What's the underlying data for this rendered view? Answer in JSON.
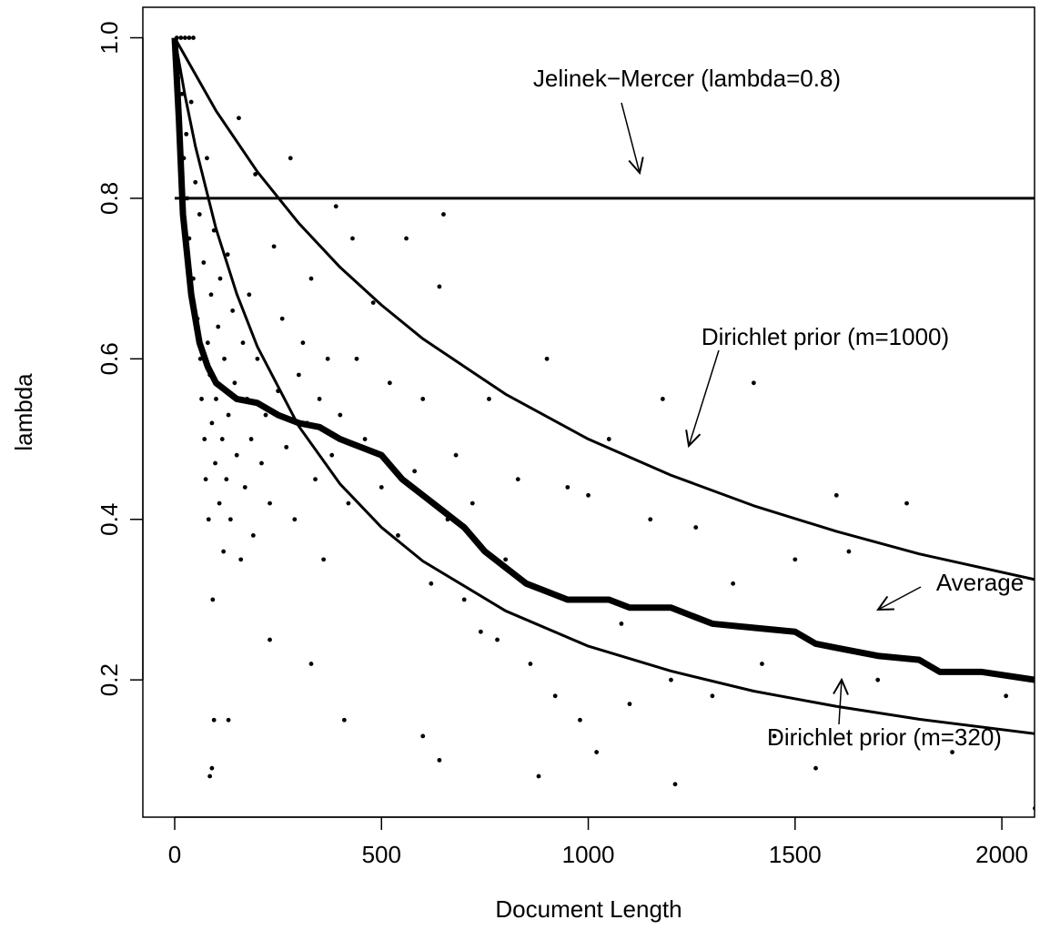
{
  "chart_data": {
    "type": "scatter",
    "xlabel": "Document Length",
    "ylabel": "lambda",
    "xlim": [
      -77,
      2079
    ],
    "ylim": [
      0.029,
      1.038
    ],
    "xticks": [
      0,
      500,
      1000,
      1500,
      2000
    ],
    "yticks": [
      0.2,
      0.4,
      0.6,
      0.8,
      {
        "value": 1,
        "label": "1.0"
      }
    ],
    "series": [
      {
        "name": "Jelinek−Mercer (lambda=0.8)",
        "mode": "line",
        "color": "#000000",
        "width": 3,
        "x": [
          0,
          2080
        ],
        "values": [
          0.8,
          0.8
        ]
      },
      {
        "name": "Dirichlet prior (m=1000)",
        "mode": "line",
        "color": "#000000",
        "width": 3,
        "x": [
          0,
          100,
          200,
          300,
          400,
          500,
          600,
          800,
          1000,
          1200,
          1400,
          1600,
          1800,
          2080
        ],
        "values": [
          1,
          0.909,
          0.833,
          0.769,
          0.714,
          0.667,
          0.625,
          0.556,
          0.5,
          0.455,
          0.417,
          0.385,
          0.357,
          0.325
        ]
      },
      {
        "name": "Dirichlet prior (m=320)",
        "mode": "line",
        "color": "#000000",
        "width": 3,
        "x": [
          0,
          25,
          50,
          100,
          150,
          200,
          300,
          400,
          500,
          600,
          800,
          1000,
          1200,
          1400,
          1600,
          1800,
          2080
        ],
        "values": [
          1,
          0.928,
          0.865,
          0.762,
          0.681,
          0.615,
          0.516,
          0.444,
          0.39,
          0.348,
          0.286,
          0.242,
          0.211,
          0.186,
          0.167,
          0.151,
          0.133
        ]
      },
      {
        "name": "Average",
        "mode": "line",
        "color": "#000000",
        "width": 7,
        "x": [
          0,
          10,
          20,
          40,
          60,
          80,
          100,
          150,
          200,
          250,
          300,
          350,
          400,
          450,
          500,
          550,
          600,
          650,
          700,
          750,
          800,
          850,
          900,
          950,
          1000,
          1050,
          1100,
          1150,
          1200,
          1250,
          1300,
          1400,
          1500,
          1550,
          1600,
          1700,
          1800,
          1850,
          1950,
          2080
        ],
        "values": [
          1,
          0.9,
          0.78,
          0.68,
          0.62,
          0.59,
          0.57,
          0.55,
          0.545,
          0.53,
          0.52,
          0.515,
          0.5,
          0.49,
          0.48,
          0.45,
          0.43,
          0.41,
          0.39,
          0.36,
          0.34,
          0.32,
          0.31,
          0.3,
          0.3,
          0.3,
          0.29,
          0.29,
          0.29,
          0.28,
          0.27,
          0.265,
          0.26,
          0.245,
          0.24,
          0.23,
          0.225,
          0.21,
          0.21,
          0.2
        ]
      },
      {
        "mode": "points",
        "color": "#000000",
        "x": [
          5,
          15,
          25,
          35,
          45,
          8,
          12,
          18,
          22,
          28,
          30,
          35,
          40,
          45,
          50,
          55,
          60,
          62,
          65,
          70,
          72,
          75,
          78,
          80,
          82,
          85,
          88,
          90,
          92,
          95,
          98,
          100,
          105,
          108,
          110,
          115,
          118,
          120,
          125,
          128,
          130,
          135,
          140,
          145,
          150,
          155,
          160,
          165,
          170,
          175,
          180,
          185,
          190,
          195,
          200,
          210,
          220,
          230,
          240,
          250,
          260,
          270,
          280,
          290,
          300,
          310,
          320,
          330,
          340,
          350,
          360,
          370,
          380,
          390,
          400,
          420,
          430,
          440,
          460,
          480,
          500,
          520,
          540,
          560,
          580,
          600,
          620,
          640,
          650,
          660,
          680,
          700,
          720,
          740,
          760,
          780,
          800,
          830,
          860,
          880,
          900,
          920,
          950,
          980,
          1000,
          1020,
          1050,
          1080,
          1100,
          1150,
          1180,
          1200,
          1210,
          1260,
          1300,
          1350,
          1400,
          1420,
          1450,
          1500,
          1550,
          1600,
          1630,
          1700,
          1770,
          1880,
          2010,
          2080,
          95,
          90,
          85,
          130,
          230,
          600,
          640,
          330,
          410
        ],
        "values": [
          1,
          1,
          1,
          1,
          1,
          0.95,
          0.9,
          0.93,
          0.85,
          0.88,
          0.8,
          0.75,
          0.92,
          0.7,
          0.82,
          0.65,
          0.78,
          0.6,
          0.55,
          0.72,
          0.5,
          0.45,
          0.85,
          0.62,
          0.4,
          0.58,
          0.68,
          0.52,
          0.3,
          0.76,
          0.47,
          0.55,
          0.64,
          0.42,
          0.7,
          0.5,
          0.36,
          0.6,
          0.45,
          0.73,
          0.53,
          0.4,
          0.66,
          0.57,
          0.48,
          0.9,
          0.35,
          0.62,
          0.44,
          0.55,
          0.68,
          0.5,
          0.38,
          0.83,
          0.6,
          0.47,
          0.53,
          0.42,
          0.74,
          0.56,
          0.65,
          0.49,
          0.85,
          0.4,
          0.58,
          0.62,
          0.52,
          0.7,
          0.45,
          0.55,
          0.35,
          0.6,
          0.48,
          0.79,
          0.53,
          0.42,
          0.75,
          0.6,
          0.5,
          0.67,
          0.44,
          0.57,
          0.38,
          0.75,
          0.46,
          0.55,
          0.32,
          0.69,
          0.78,
          0.4,
          0.48,
          0.3,
          0.42,
          0.26,
          0.55,
          0.25,
          0.35,
          0.45,
          0.22,
          0.08,
          0.6,
          0.18,
          0.44,
          0.15,
          0.43,
          0.11,
          0.5,
          0.27,
          0.17,
          0.4,
          0.55,
          0.2,
          0.07,
          0.39,
          0.18,
          0.32,
          0.57,
          0.22,
          0.13,
          0.35,
          0.09,
          0.43,
          0.36,
          0.2,
          0.42,
          0.11,
          0.18,
          0.04,
          0.15,
          0.09,
          0.08,
          0.15,
          0.25,
          0.13,
          0.1,
          0.22,
          0.15
        ]
      }
    ]
  }
}
